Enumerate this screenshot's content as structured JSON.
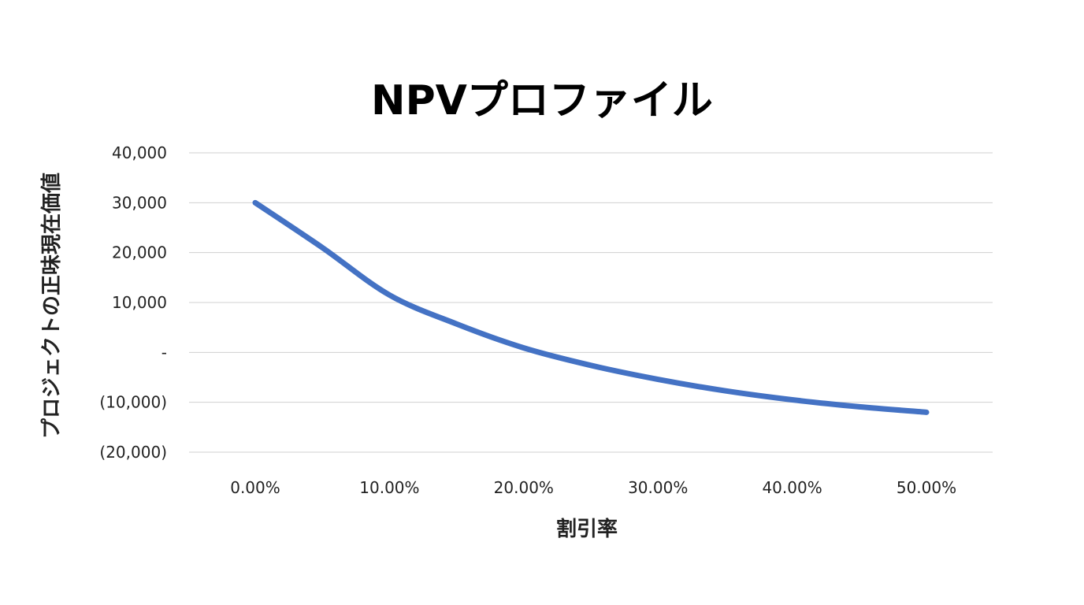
{
  "chart_data": {
    "type": "line",
    "title": "NPVプロファイル",
    "xlabel": "割引率",
    "ylabel": "プロジェクトの正味現在価値",
    "x": [
      0.0,
      0.05,
      0.1,
      0.15,
      0.2,
      0.25,
      0.3,
      0.35,
      0.4,
      0.45,
      0.5
    ],
    "x_tick_labels": [
      "0.00%",
      "10.00%",
      "20.00%",
      "30.00%",
      "40.00%",
      "50.00%"
    ],
    "x_tick_values": [
      0.0,
      0.1,
      0.2,
      0.3,
      0.4,
      0.5
    ],
    "y_tick_labels": [
      "40,000",
      "30,000",
      "20,000",
      "10,000",
      "-",
      "(10,000)",
      "(20,000)"
    ],
    "y_tick_values": [
      40000,
      30000,
      20000,
      10000,
      0,
      -10000,
      -20000
    ],
    "ylim": [
      -20000,
      40000
    ],
    "grid": true,
    "legend": "none",
    "series": [
      {
        "color": "#4472C4",
        "values": [
          30000,
          21000,
          11500,
          5700,
          900,
          -2600,
          -5400,
          -7700,
          -9500,
          -10900,
          -12000
        ]
      }
    ]
  }
}
